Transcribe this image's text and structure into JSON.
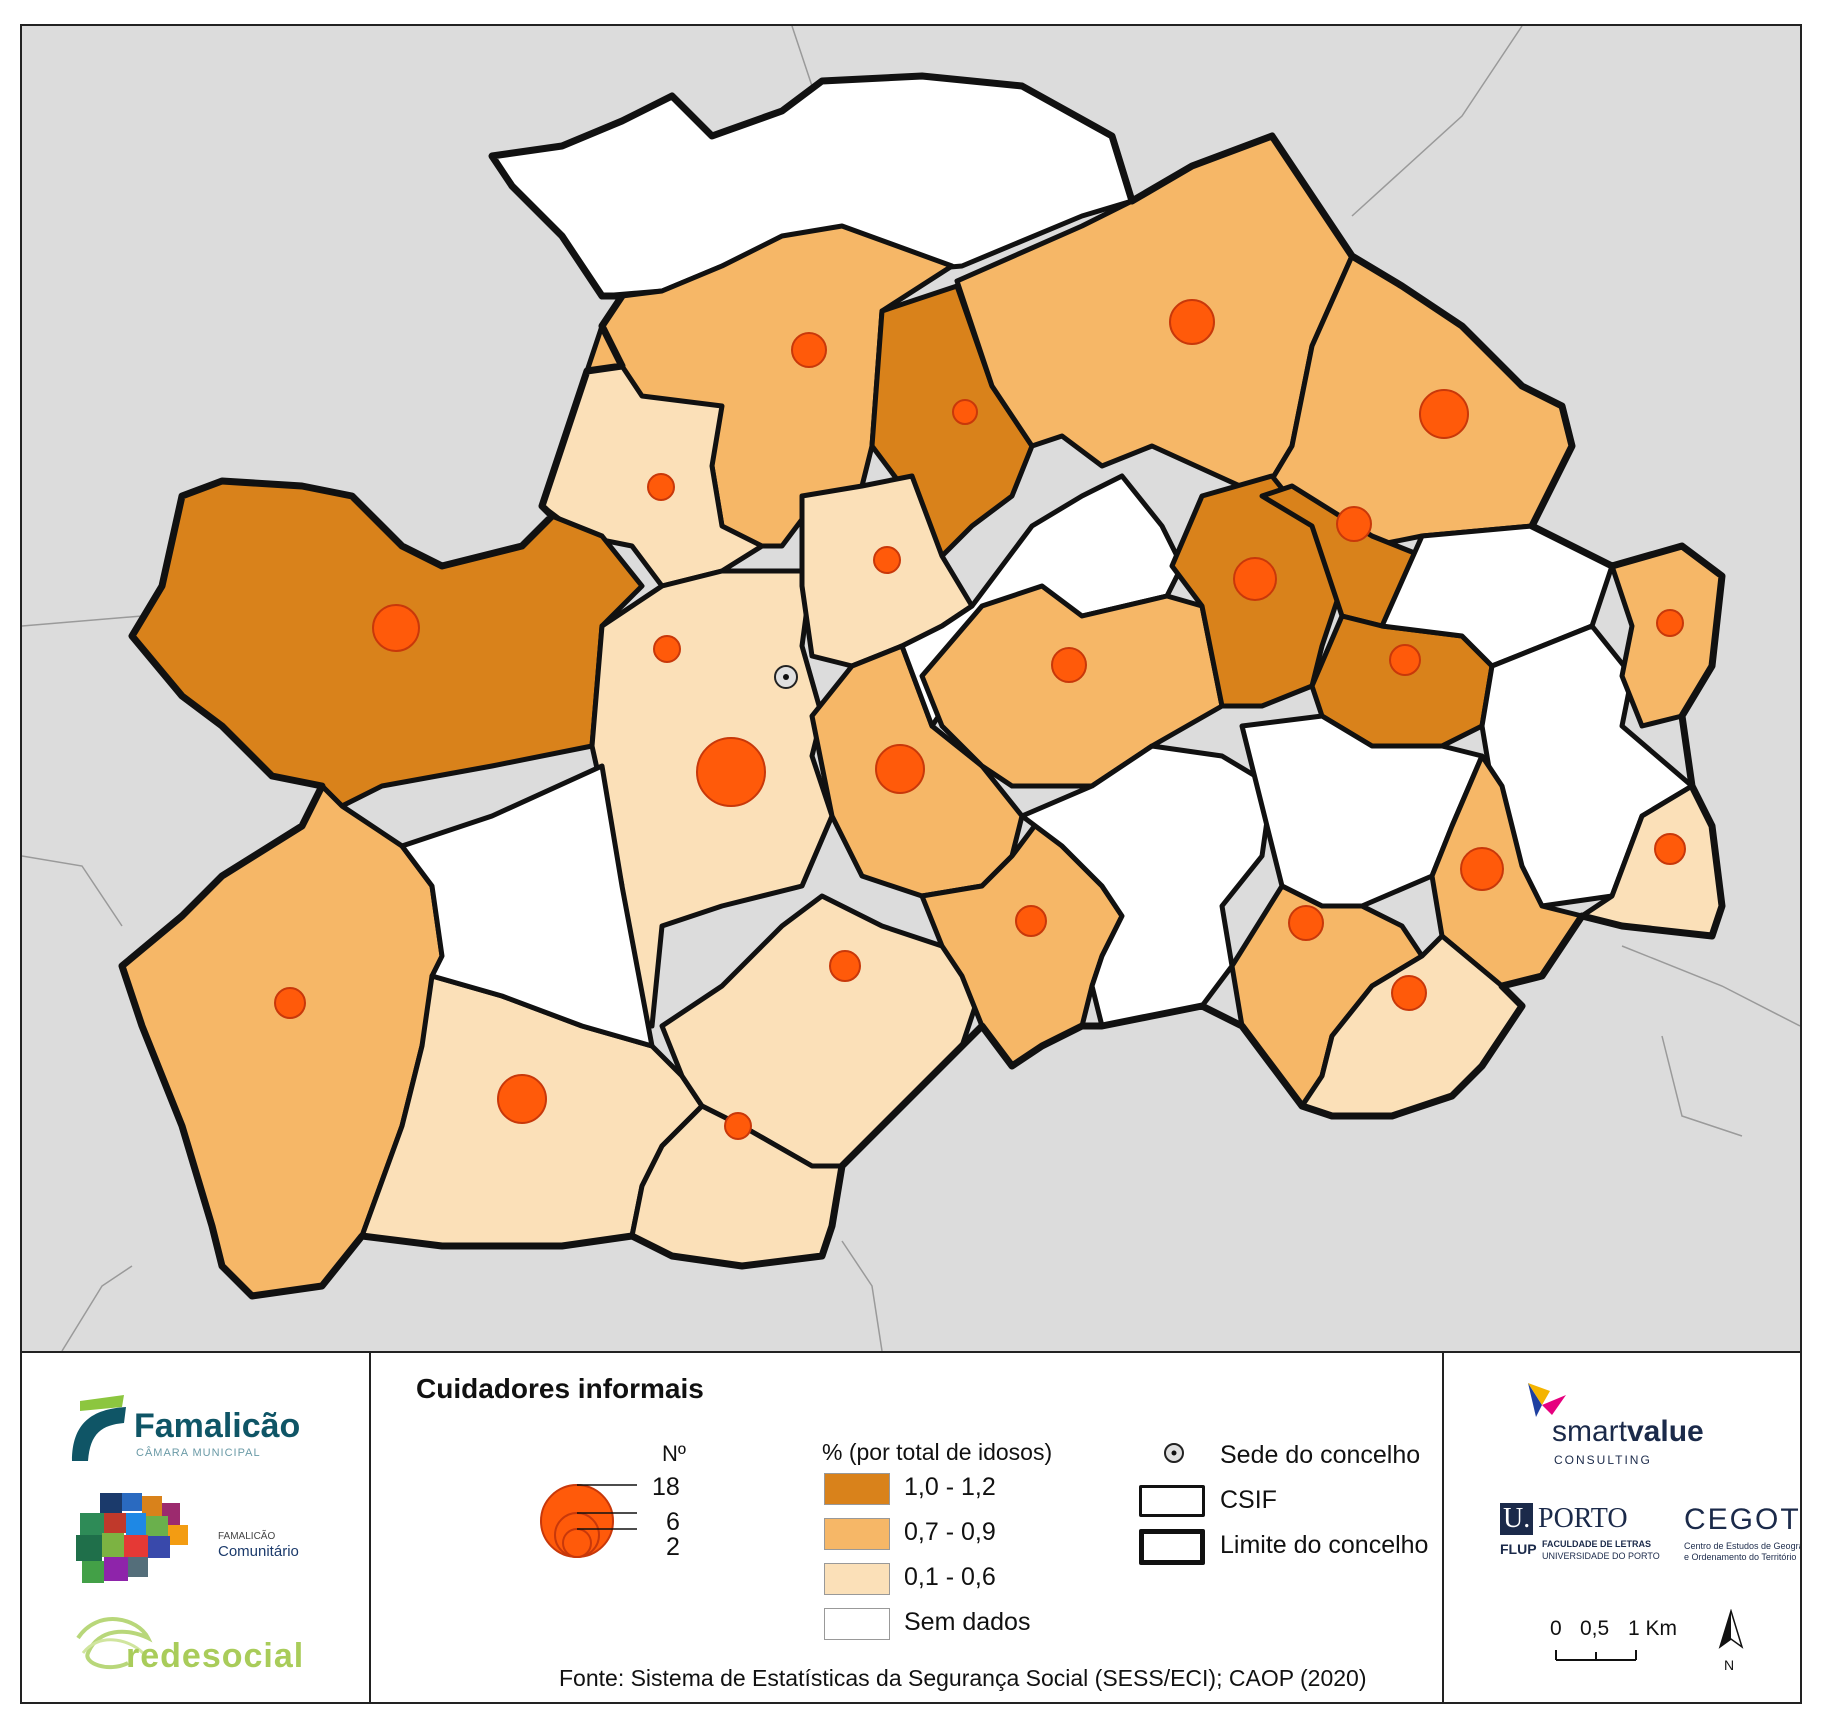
{
  "map": {
    "colors": {
      "background": "#dcdcdc",
      "class_high": "#d9821b",
      "class_mid": "#f6b767",
      "class_low": "#fbe0b8",
      "no_data": "#ffffff",
      "circle": "#ff5a0a",
      "circle_stroke": "#c8380a",
      "border": "#111111"
    },
    "seat_marker": "sede-do-concelho-icon"
  },
  "legend": {
    "title": "Cuidadores informais",
    "count_header": "Nº",
    "count_values": [
      "18",
      "6",
      "2"
    ],
    "pct_header": "% (por total de idosos)",
    "classes": [
      {
        "label": "1,0 - 1,2",
        "color": "#d9821b"
      },
      {
        "label": "0,7 - 0,9",
        "color": "#f6b767"
      },
      {
        "label": "0,1 - 0,6",
        "color": "#fbe0b8"
      },
      {
        "label": "Sem dados",
        "color": "#ffffff"
      }
    ],
    "symbols": {
      "seat": "Sede do concelho",
      "csif": "CSIF",
      "limit": "Limite do concelho"
    },
    "source": "Fonte:  Sistema de Estatísticas da Segurança Social (SESS/ECI); CAOP (2020)"
  },
  "logos": {
    "famalicao_name": "Famalicão",
    "famalicao_sub": "CÂMARA MUNICIPAL",
    "comunitario_top": "FAMALICÃO",
    "comunitario_name": "Comunitário",
    "redesocial": "redesocial",
    "smart": "smart",
    "value": "value",
    "consulting": "CONSULTING",
    "uporto_u": "U.",
    "uporto_porto": "PORTO",
    "flup": "FLUP",
    "flup_line1": "FACULDADE DE LETRAS",
    "flup_line2": "UNIVERSIDADE DO PORTO",
    "cegot": "CEGOT",
    "cegot_line1": "Centro de Estudos de Geografia",
    "cegot_line2": "e Ordenamento do Território"
  },
  "scale": {
    "ticks": [
      "0",
      "0,5",
      "1 Km"
    ],
    "north": "N"
  }
}
